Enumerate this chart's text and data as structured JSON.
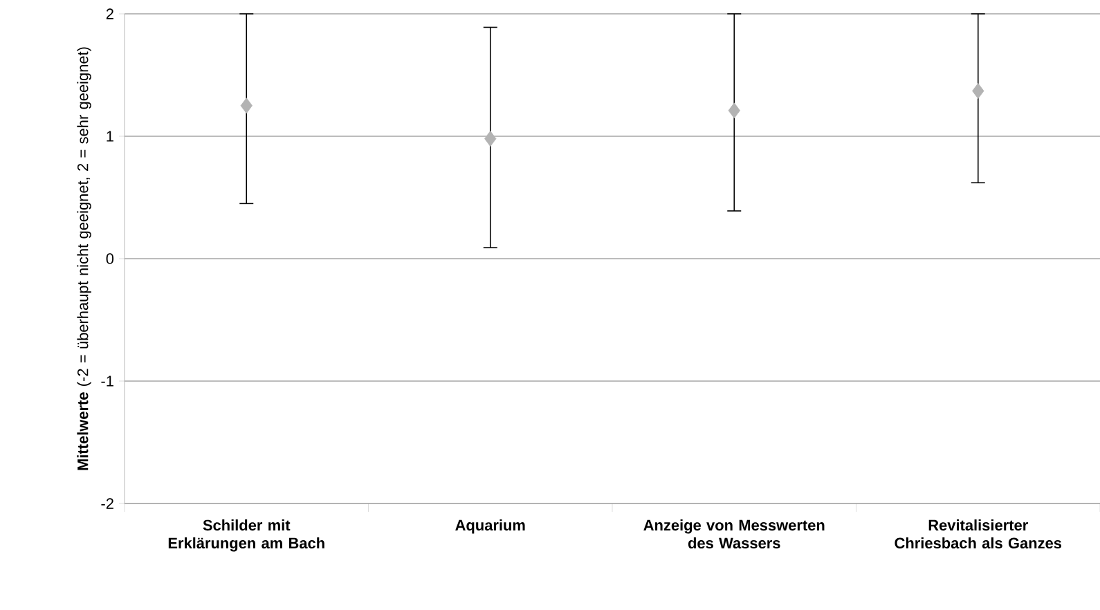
{
  "chart_data": {
    "type": "scatter",
    "ylabel": "**Mittelwerte** (-2 = überhaupt nicht geeignet, 2 = sehr geeignet)",
    "categories": [
      "Schilder mit Erklärungen am Bach",
      "Aquarium",
      "Anzeige von Messwerten des Wassers",
      "Revitalisierter Chriesbach als Ganzes"
    ],
    "values": [
      1.25,
      0.98,
      1.21,
      1.37
    ],
    "errors": [
      [
        0.45,
        2
      ],
      [
        0.09,
        1.89
      ],
      [
        0.39,
        2
      ],
      [
        0.62,
        2
      ]
    ],
    "color": "#b3b3b3",
    "marker": "diamond",
    "ylim": [
      -2,
      2
    ],
    "yticks": [
      -2,
      -1,
      0,
      1,
      2
    ],
    "grid": "y"
  }
}
